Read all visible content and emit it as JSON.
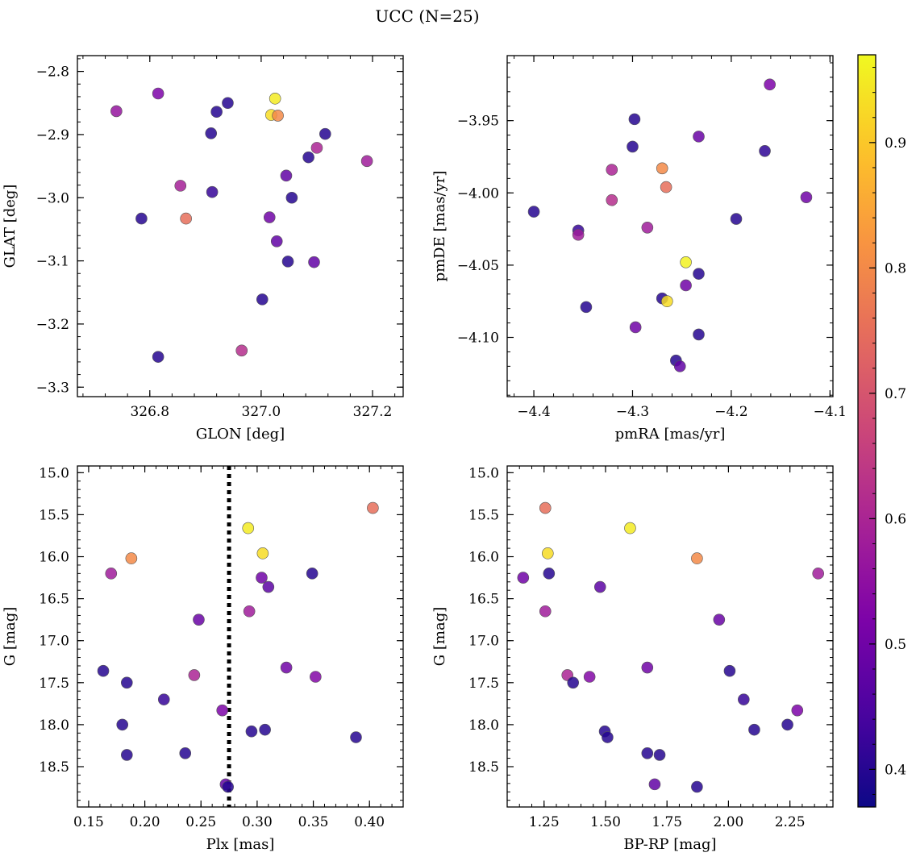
{
  "figure": {
    "title": "UCC (N=25)"
  },
  "colorbar": {
    "colormap": "plasma",
    "range": [
      0.37,
      0.97
    ],
    "ticks": [
      0.4,
      0.5,
      0.6,
      0.7,
      0.8,
      0.9
    ],
    "tick_labels": [
      "0.4",
      "0.5",
      "0.6",
      "0.7",
      "0.8",
      "0.9"
    ]
  },
  "chart_data": [
    {
      "type": "scatter",
      "xlabel": "GLON [deg]",
      "ylabel": "GLAT [deg]",
      "xlim": [
        326.67,
        327.255
      ],
      "ylim": [
        -3.315,
        -2.775
      ],
      "xticks": [
        326.8,
        327.0,
        327.2
      ],
      "xtick_labels": [
        "326.8",
        "327.0",
        "327.2"
      ],
      "yticks": [
        -2.8,
        -2.9,
        -3.0,
        -3.1,
        -3.2,
        -3.3
      ],
      "ytick_labels": [
        "−2.8",
        "−2.9",
        "−3.0",
        "−3.1",
        "−3.2",
        "−3.3"
      ],
      "points": [
        {
          "x": 326.74,
          "y": -2.863,
          "c": 0.56
        },
        {
          "x": 326.815,
          "y": -2.835,
          "c": 0.52
        },
        {
          "x": 326.94,
          "y": -2.85,
          "c": 0.4
        },
        {
          "x": 326.92,
          "y": -2.864,
          "c": 0.4
        },
        {
          "x": 326.91,
          "y": -2.898,
          "c": 0.4
        },
        {
          "x": 327.025,
          "y": -2.843,
          "c": 0.95
        },
        {
          "x": 327.018,
          "y": -2.869,
          "c": 0.93
        },
        {
          "x": 327.03,
          "y": -2.87,
          "c": 0.8
        },
        {
          "x": 327.115,
          "y": -2.899,
          "c": 0.4
        },
        {
          "x": 327.1,
          "y": -2.921,
          "c": 0.6
        },
        {
          "x": 327.085,
          "y": -2.936,
          "c": 0.4
        },
        {
          "x": 327.19,
          "y": -2.942,
          "c": 0.58
        },
        {
          "x": 327.045,
          "y": -2.965,
          "c": 0.48
        },
        {
          "x": 326.855,
          "y": -2.981,
          "c": 0.59
        },
        {
          "x": 326.912,
          "y": -2.991,
          "c": 0.42
        },
        {
          "x": 327.055,
          "y": -3.0,
          "c": 0.4
        },
        {
          "x": 326.785,
          "y": -3.033,
          "c": 0.4
        },
        {
          "x": 326.865,
          "y": -3.033,
          "c": 0.75
        },
        {
          "x": 327.015,
          "y": -3.031,
          "c": 0.5
        },
        {
          "x": 327.028,
          "y": -3.069,
          "c": 0.48
        },
        {
          "x": 327.048,
          "y": -3.101,
          "c": 0.4
        },
        {
          "x": 327.095,
          "y": -3.102,
          "c": 0.48
        },
        {
          "x": 327.002,
          "y": -3.161,
          "c": 0.4
        },
        {
          "x": 326.965,
          "y": -3.242,
          "c": 0.62
        },
        {
          "x": 326.815,
          "y": -3.252,
          "c": 0.4
        }
      ]
    },
    {
      "type": "scatter",
      "xlabel": "pmRA [mas/yr]",
      "ylabel": "pmDE [mas/yr]",
      "xlim": [
        -4.427,
        -4.097
      ],
      "ylim": [
        -4.141,
        -3.905
      ],
      "xticks": [
        -4.4,
        -4.3,
        -4.2,
        -4.1
      ],
      "xtick_labels": [
        "−4.4",
        "−4.3",
        "−4.2",
        "−4.1"
      ],
      "yticks": [
        -3.95,
        -4.0,
        -4.05,
        -4.1
      ],
      "ytick_labels": [
        "−3.95",
        "−4.00",
        "−4.05",
        "−4.10"
      ],
      "points": [
        {
          "x": -4.161,
          "y": -3.925,
          "c": 0.52
        },
        {
          "x": -4.298,
          "y": -3.949,
          "c": 0.4
        },
        {
          "x": -4.233,
          "y": -3.961,
          "c": 0.49
        },
        {
          "x": -4.3,
          "y": -3.968,
          "c": 0.4
        },
        {
          "x": -4.166,
          "y": -3.971,
          "c": 0.41
        },
        {
          "x": -4.321,
          "y": -3.984,
          "c": 0.6
        },
        {
          "x": -4.27,
          "y": -3.983,
          "c": 0.8
        },
        {
          "x": -4.266,
          "y": -3.996,
          "c": 0.75
        },
        {
          "x": -4.321,
          "y": -4.005,
          "c": 0.62
        },
        {
          "x": -4.124,
          "y": -4.003,
          "c": 0.5
        },
        {
          "x": -4.4,
          "y": -4.013,
          "c": 0.4
        },
        {
          "x": -4.195,
          "y": -4.018,
          "c": 0.4
        },
        {
          "x": -4.355,
          "y": -4.026,
          "c": 0.42
        },
        {
          "x": -4.355,
          "y": -4.029,
          "c": 0.58
        },
        {
          "x": -4.285,
          "y": -4.024,
          "c": 0.58
        },
        {
          "x": -4.246,
          "y": -4.048,
          "c": 0.96
        },
        {
          "x": -4.233,
          "y": -4.056,
          "c": 0.4
        },
        {
          "x": -4.246,
          "y": -4.064,
          "c": 0.5
        },
        {
          "x": -4.27,
          "y": -4.073,
          "c": 0.4
        },
        {
          "x": -4.265,
          "y": -4.075,
          "c": 0.93
        },
        {
          "x": -4.347,
          "y": -4.079,
          "c": 0.4
        },
        {
          "x": -4.297,
          "y": -4.093,
          "c": 0.5
        },
        {
          "x": -4.233,
          "y": -4.098,
          "c": 0.4
        },
        {
          "x": -4.256,
          "y": -4.116,
          "c": 0.4
        },
        {
          "x": -4.252,
          "y": -4.12,
          "c": 0.48
        }
      ]
    },
    {
      "type": "scatter",
      "xlabel": "Plx [mas]",
      "ylabel": "G [mag]",
      "xlim": [
        0.14,
        0.43
      ],
      "ylim": [
        18.98,
        14.92
      ],
      "xticks": [
        0.15,
        0.2,
        0.25,
        0.3,
        0.35,
        0.4
      ],
      "xtick_labels": [
        "0.15",
        "0.20",
        "0.25",
        "0.30",
        "0.35",
        "0.40"
      ],
      "yticks": [
        15.0,
        15.5,
        16.0,
        16.5,
        17.0,
        17.5,
        18.0,
        18.5
      ],
      "ytick_labels": [
        "15.0",
        "15.5",
        "16.0",
        "16.5",
        "17.0",
        "17.5",
        "18.0",
        "18.5"
      ],
      "vline_x": 0.275,
      "points": [
        {
          "x": 0.403,
          "y": 15.42,
          "c": 0.75
        },
        {
          "x": 0.292,
          "y": 15.66,
          "c": 0.95
        },
        {
          "x": 0.305,
          "y": 15.96,
          "c": 0.93
        },
        {
          "x": 0.188,
          "y": 16.02,
          "c": 0.8
        },
        {
          "x": 0.17,
          "y": 16.2,
          "c": 0.58
        },
        {
          "x": 0.349,
          "y": 16.2,
          "c": 0.4
        },
        {
          "x": 0.304,
          "y": 16.25,
          "c": 0.5
        },
        {
          "x": 0.31,
          "y": 16.36,
          "c": 0.47
        },
        {
          "x": 0.293,
          "y": 16.65,
          "c": 0.58
        },
        {
          "x": 0.248,
          "y": 16.75,
          "c": 0.49
        },
        {
          "x": 0.326,
          "y": 17.32,
          "c": 0.5
        },
        {
          "x": 0.163,
          "y": 17.36,
          "c": 0.4
        },
        {
          "x": 0.244,
          "y": 17.41,
          "c": 0.6
        },
        {
          "x": 0.352,
          "y": 17.43,
          "c": 0.53
        },
        {
          "x": 0.184,
          "y": 17.5,
          "c": 0.4
        },
        {
          "x": 0.217,
          "y": 17.7,
          "c": 0.42
        },
        {
          "x": 0.269,
          "y": 17.83,
          "c": 0.52
        },
        {
          "x": 0.18,
          "y": 18.0,
          "c": 0.4
        },
        {
          "x": 0.307,
          "y": 18.06,
          "c": 0.4
        },
        {
          "x": 0.295,
          "y": 18.08,
          "c": 0.4
        },
        {
          "x": 0.388,
          "y": 18.15,
          "c": 0.4
        },
        {
          "x": 0.236,
          "y": 18.34,
          "c": 0.4
        },
        {
          "x": 0.184,
          "y": 18.36,
          "c": 0.4
        },
        {
          "x": 0.272,
          "y": 18.71,
          "c": 0.48
        },
        {
          "x": 0.274,
          "y": 18.74,
          "c": 0.4
        }
      ]
    },
    {
      "type": "scatter",
      "xlabel": "BP-RP [mag]",
      "ylabel": "G [mag]",
      "xlim": [
        1.1,
        2.425
      ],
      "ylim": [
        18.98,
        14.92
      ],
      "xticks": [
        1.25,
        1.5,
        1.75,
        2.0,
        2.25
      ],
      "xtick_labels": [
        "1.25",
        "1.50",
        "1.75",
        "2.00",
        "2.25"
      ],
      "yticks": [
        15.0,
        15.5,
        16.0,
        16.5,
        17.0,
        17.5,
        18.0,
        18.5
      ],
      "ytick_labels": [
        "15.0",
        "15.5",
        "16.0",
        "16.5",
        "17.0",
        "17.5",
        "18.0",
        "18.5"
      ],
      "points": [
        {
          "x": 1.255,
          "y": 15.42,
          "c": 0.75
        },
        {
          "x": 1.6,
          "y": 15.66,
          "c": 0.95
        },
        {
          "x": 1.265,
          "y": 15.96,
          "c": 0.93
        },
        {
          "x": 1.872,
          "y": 16.02,
          "c": 0.8
        },
        {
          "x": 1.27,
          "y": 16.2,
          "c": 0.4
        },
        {
          "x": 2.365,
          "y": 16.2,
          "c": 0.58
        },
        {
          "x": 1.165,
          "y": 16.25,
          "c": 0.5
        },
        {
          "x": 1.478,
          "y": 16.36,
          "c": 0.47
        },
        {
          "x": 1.255,
          "y": 16.65,
          "c": 0.58
        },
        {
          "x": 1.962,
          "y": 16.75,
          "c": 0.49
        },
        {
          "x": 1.67,
          "y": 17.32,
          "c": 0.5
        },
        {
          "x": 2.005,
          "y": 17.36,
          "c": 0.4
        },
        {
          "x": 1.345,
          "y": 17.41,
          "c": 0.6
        },
        {
          "x": 1.435,
          "y": 17.43,
          "c": 0.53
        },
        {
          "x": 1.368,
          "y": 17.5,
          "c": 0.4
        },
        {
          "x": 2.062,
          "y": 17.7,
          "c": 0.42
        },
        {
          "x": 2.28,
          "y": 17.83,
          "c": 0.52
        },
        {
          "x": 2.24,
          "y": 18.0,
          "c": 0.4
        },
        {
          "x": 2.105,
          "y": 18.06,
          "c": 0.4
        },
        {
          "x": 1.497,
          "y": 18.08,
          "c": 0.4
        },
        {
          "x": 1.508,
          "y": 18.15,
          "c": 0.4
        },
        {
          "x": 1.67,
          "y": 18.34,
          "c": 0.4
        },
        {
          "x": 1.72,
          "y": 18.36,
          "c": 0.4
        },
        {
          "x": 1.7,
          "y": 18.71,
          "c": 0.48
        },
        {
          "x": 1.872,
          "y": 18.74,
          "c": 0.4
        }
      ]
    }
  ]
}
